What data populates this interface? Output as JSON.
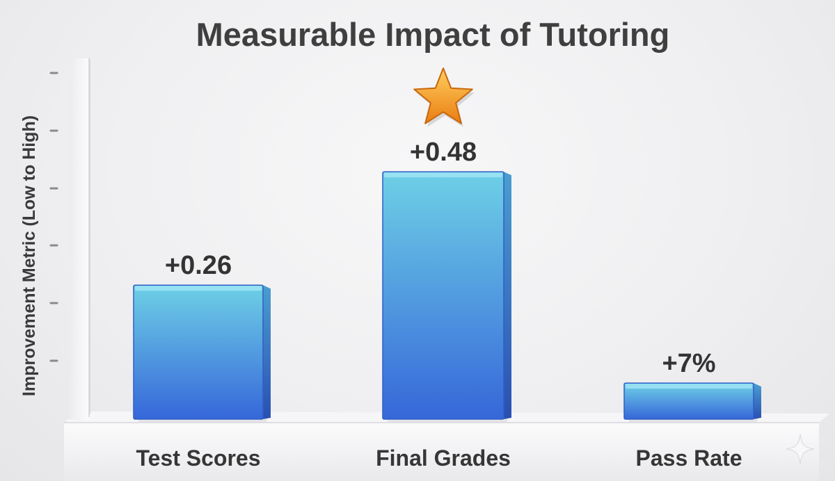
{
  "chart_data": {
    "type": "bar",
    "title": "Measurable Impact of Tutoring",
    "ylabel": "Improvement Metric (Low to High)",
    "xlabel": "",
    "categories": [
      "Test Scores",
      "Final Grades",
      "Pass Rate"
    ],
    "values": [
      0.26,
      0.48,
      0.07
    ],
    "value_labels": [
      "+0.26",
      "+0.48",
      "+7%"
    ],
    "ylim": [
      0,
      0.7
    ],
    "grid": false,
    "legend": "none",
    "highlight": {
      "category": "Final Grades",
      "marker": "star-icon"
    },
    "colors": {
      "bar_top": "#6ed0e6",
      "bar_bottom": "#3667d9",
      "bar_side": "#2a52b6",
      "bar_cap": "#8cdcf0",
      "star": "#f39a1e",
      "text": "#363636"
    }
  },
  "decoration": {
    "corner_icon": "sparkle-icon"
  }
}
